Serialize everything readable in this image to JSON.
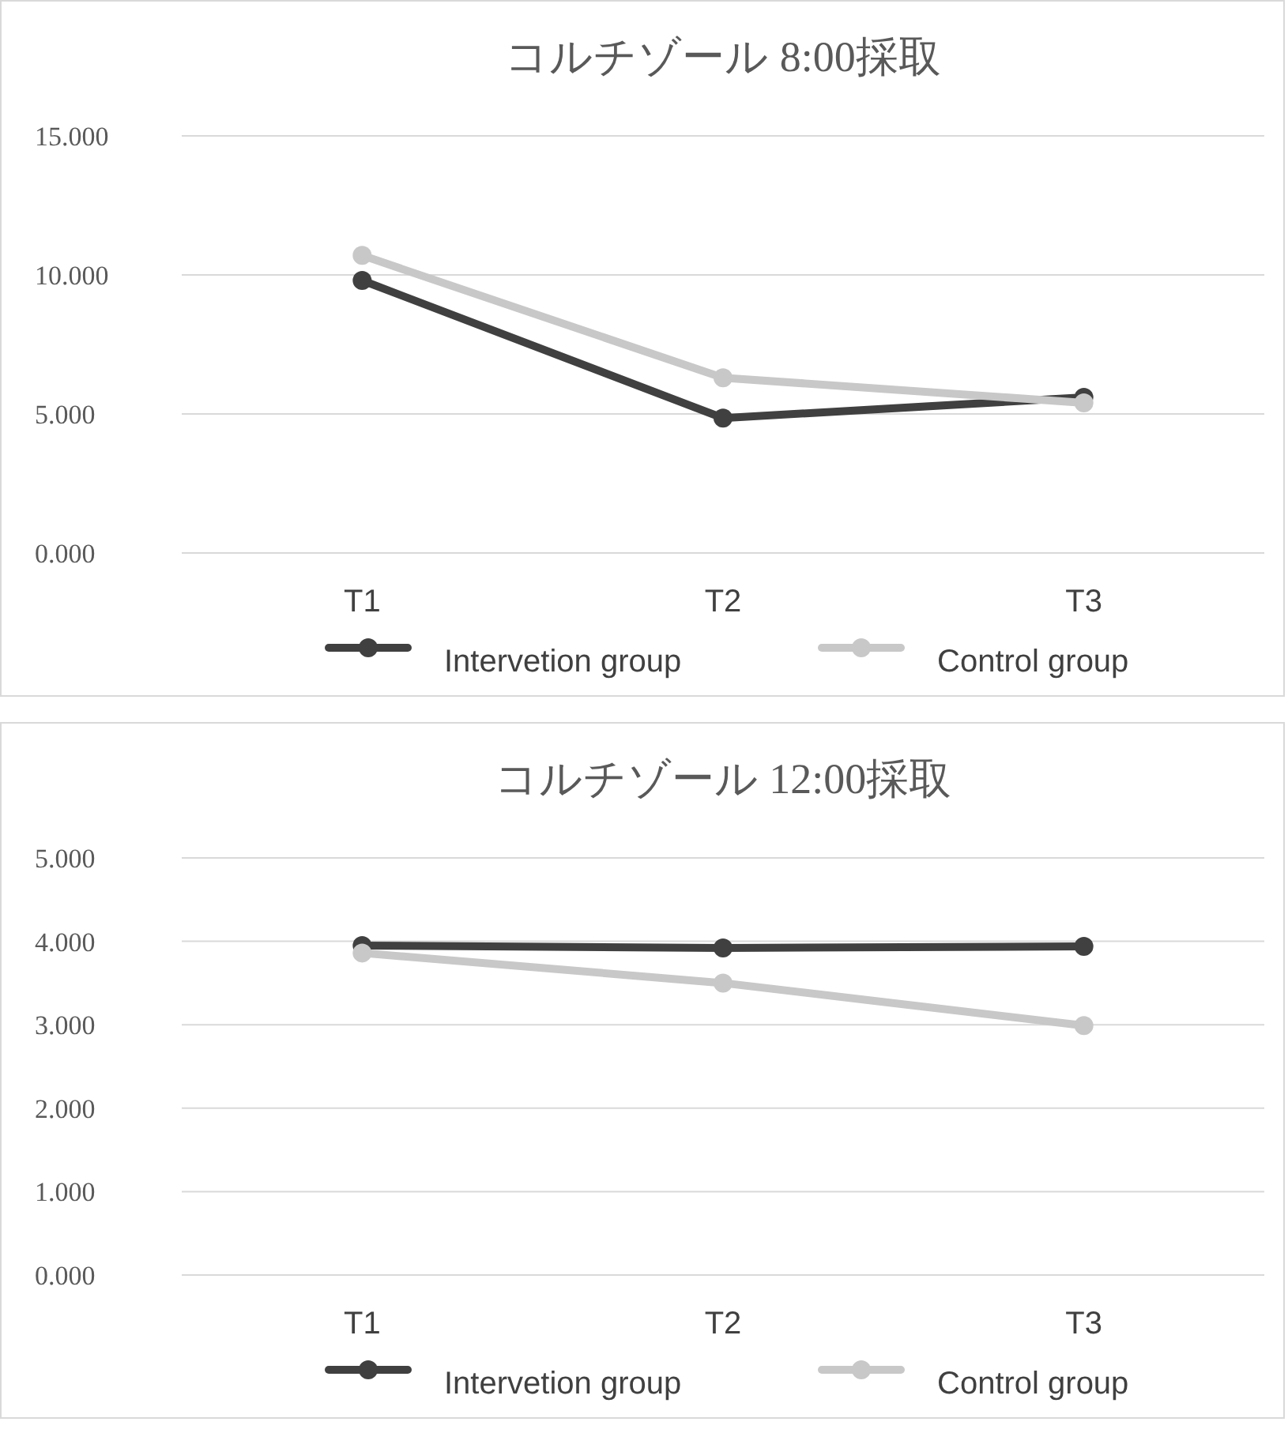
{
  "chart_data": [
    {
      "type": "line",
      "title": "コルチゾール 8:00採取",
      "categories": [
        "T1",
        "T2",
        "T3"
      ],
      "series": [
        {
          "name": "Intervetion group",
          "color": "#404040",
          "values": [
            9.8,
            4.85,
            5.6
          ]
        },
        {
          "name": "Control group",
          "color": "#c8c8c8",
          "values": [
            10.7,
            6.3,
            5.4
          ]
        }
      ],
      "ylim": [
        0,
        15
      ],
      "yticks": [
        {
          "value": 0,
          "label": "0.000"
        },
        {
          "value": 5,
          "label": "5.000"
        },
        {
          "value": 10,
          "label": "10.000"
        },
        {
          "value": 15,
          "label": "15.000"
        }
      ],
      "grid": "y",
      "legend": "bottom",
      "marker": "circle",
      "line_style": "solid"
    },
    {
      "type": "line",
      "title": "コルチゾール 12:00採取",
      "categories": [
        "T1",
        "T2",
        "T3"
      ],
      "series": [
        {
          "name": "Intervetion group",
          "color": "#404040",
          "values": [
            3.95,
            3.92,
            3.94
          ]
        },
        {
          "name": "Control group",
          "color": "#c8c8c8",
          "values": [
            3.86,
            3.5,
            2.99
          ]
        }
      ],
      "ylim": [
        0,
        5
      ],
      "yticks": [
        {
          "value": 0,
          "label": "0.000"
        },
        {
          "value": 1,
          "label": "1.000"
        },
        {
          "value": 2,
          "label": "2.000"
        },
        {
          "value": 3,
          "label": "3.000"
        },
        {
          "value": 4,
          "label": "4.000"
        },
        {
          "value": 5,
          "label": "5.000"
        }
      ],
      "grid": "y",
      "legend": "bottom",
      "marker": "circle",
      "line_style": "solid"
    }
  ]
}
